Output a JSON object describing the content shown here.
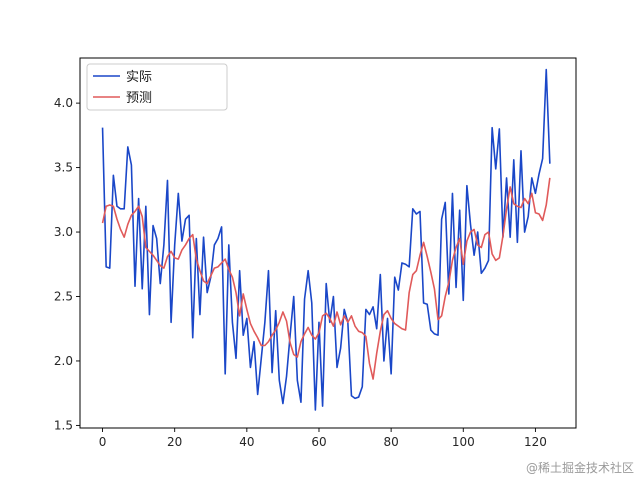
{
  "chart_data": {
    "type": "line",
    "title": "",
    "xlabel": "",
    "ylabel": "",
    "xlim": [
      -6.25,
      131.25
    ],
    "ylim": [
      1.48,
      4.35
    ],
    "xticks": [
      0,
      20,
      40,
      60,
      80,
      100,
      120
    ],
    "yticks": [
      1.5,
      2.0,
      2.5,
      3.0,
      3.5,
      4.0
    ],
    "ytick_labels": [
      "1.5",
      "2.0",
      "2.5",
      "3.0",
      "3.5",
      "4.0"
    ],
    "legend_position": "top-left",
    "grid": false,
    "series": [
      {
        "name": "实际",
        "color": "#1a47c8",
        "values": [
          3.81,
          2.73,
          2.72,
          3.44,
          3.2,
          3.18,
          3.18,
          3.66,
          3.52,
          2.58,
          3.26,
          2.56,
          3.2,
          2.36,
          3.05,
          2.95,
          2.6,
          2.9,
          3.4,
          2.3,
          2.9,
          3.3,
          2.93,
          3.1,
          3.13,
          2.18,
          2.95,
          2.36,
          2.96,
          2.53,
          2.65,
          2.9,
          2.95,
          3.04,
          1.9,
          2.9,
          2.3,
          2.02,
          2.7,
          2.2,
          2.33,
          1.95,
          2.15,
          1.74,
          2.02,
          2.3,
          2.7,
          1.91,
          2.39,
          1.85,
          1.67,
          1.88,
          2.2,
          2.5,
          1.85,
          1.68,
          2.48,
          2.7,
          2.45,
          1.62,
          2.3,
          1.65,
          2.6,
          2.3,
          2.5,
          1.95,
          2.1,
          2.4,
          2.3,
          1.73,
          1.71,
          1.72,
          1.8,
          2.4,
          2.36,
          2.42,
          2.25,
          2.67,
          2.0,
          2.33,
          1.9,
          2.65,
          2.55,
          2.76,
          2.75,
          2.73,
          3.18,
          3.14,
          3.16,
          2.45,
          2.44,
          2.24,
          2.21,
          2.2,
          3.1,
          3.23,
          2.52,
          3.3,
          2.57,
          3.17,
          2.47,
          3.36,
          3.06,
          2.82,
          3.0,
          2.68,
          2.72,
          2.78,
          3.81,
          3.49,
          3.8,
          2.96,
          3.42,
          2.96,
          3.56,
          2.92,
          3.63,
          3.0,
          3.12,
          3.42,
          3.3,
          3.45,
          3.57,
          4.26,
          3.53
        ]
      },
      {
        "name": "预测",
        "color": "#e05a5a",
        "values": [
          3.07,
          3.2,
          3.21,
          3.2,
          3.1,
          3.02,
          2.96,
          3.06,
          3.13,
          3.16,
          3.2,
          3.12,
          2.88,
          2.85,
          2.82,
          2.78,
          2.74,
          2.72,
          2.81,
          2.85,
          2.8,
          2.79,
          2.86,
          2.9,
          2.95,
          2.98,
          2.79,
          2.7,
          2.62,
          2.6,
          2.66,
          2.72,
          2.73,
          2.76,
          2.79,
          2.71,
          2.65,
          2.53,
          2.35,
          2.52,
          2.4,
          2.29,
          2.23,
          2.18,
          2.12,
          2.12,
          2.15,
          2.2,
          2.24,
          2.3,
          2.38,
          2.31,
          2.14,
          2.05,
          2.03,
          2.15,
          2.21,
          2.26,
          2.2,
          2.17,
          2.22,
          2.35,
          2.37,
          2.33,
          2.27,
          2.38,
          2.28,
          2.35,
          2.3,
          2.35,
          2.27,
          2.23,
          2.22,
          2.19,
          1.98,
          1.86,
          2.06,
          2.23,
          2.36,
          2.39,
          2.33,
          2.29,
          2.27,
          2.25,
          2.24,
          2.53,
          2.67,
          2.7,
          2.82,
          2.92,
          2.81,
          2.69,
          2.56,
          2.32,
          2.35,
          2.5,
          2.61,
          2.78,
          2.88,
          2.95,
          2.75,
          2.93,
          3.0,
          3.02,
          2.9,
          2.88,
          2.98,
          3.0,
          2.83,
          2.78,
          2.8,
          2.97,
          3.18,
          3.35,
          3.22,
          3.2,
          3.19,
          3.26,
          3.22,
          3.3,
          3.15,
          3.14,
          3.09,
          3.21,
          3.42
        ]
      }
    ]
  },
  "watermark": "@稀土掘金技术社区"
}
